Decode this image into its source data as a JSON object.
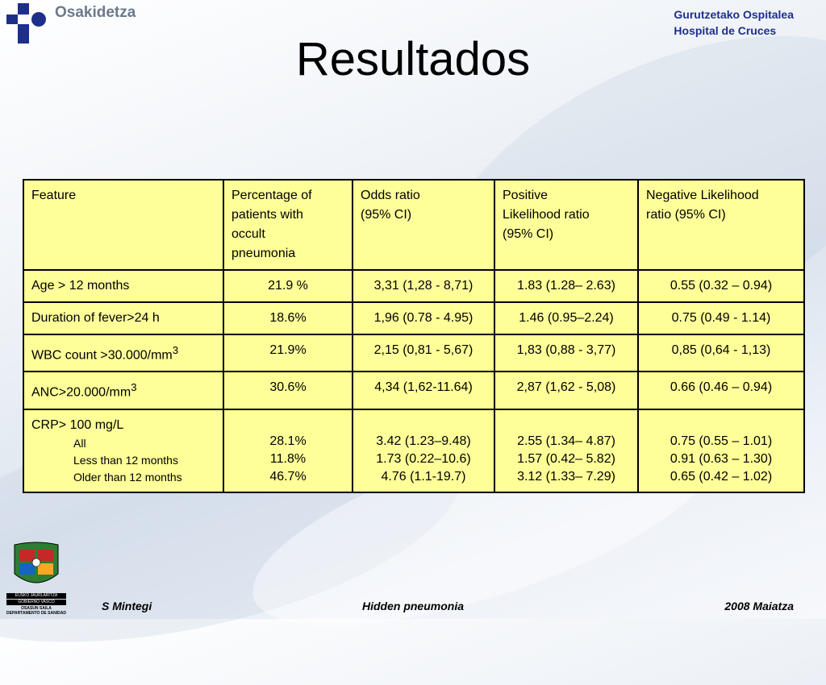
{
  "header": {
    "logo_name": "Osakidetza",
    "hospital_line1": "Gurutzetako Ospitalea",
    "hospital_line2": "Hospital de Cruces"
  },
  "slide": {
    "title": "Resultados"
  },
  "table": {
    "headers": [
      [
        "Feature"
      ],
      [
        "Percentage of",
        "patients with",
        "occult",
        "pneumonia"
      ],
      [
        "Odds ratio",
        "(95% CI)"
      ],
      [
        "Positive",
        "Likelihood ratio",
        "(95% CI)"
      ],
      [
        "Negative Likelihood",
        "ratio (95% CI)"
      ]
    ],
    "rows": [
      {
        "feature": "Age > 12 months",
        "pct": "21.9 %",
        "or": "3,31 (1,28 - 8,71)",
        "plr": "1.83 (1.28– 2.63)",
        "nlr": "0.55 (0.32 – 0.94)"
      },
      {
        "feature": "Duration of fever>24 h",
        "pct": "18.6%",
        "or": "1,96 (0.78 - 4.95)",
        "plr": "1.46 (0.95–2.24)",
        "nlr": "0.75 (0.49 - 1.14)"
      },
      {
        "feature": "WBC count >30.000/mm",
        "sup": "3",
        "pct": "21.9%",
        "or": "2,15 (0,81 - 5,67)",
        "plr": "1,83 (0,88 - 3,77)",
        "nlr": "0,85 (0,64 - 1,13)"
      },
      {
        "feature": "ANC>20.000/mm",
        "sup": "3",
        "pct": "30.6%",
        "or": "4,34 (1,62-11.64)",
        "plr": "2,87 (1,62 - 5,08)",
        "nlr": "0.66 (0.46 – 0.94)"
      }
    ],
    "crp": {
      "feature": "CRP> 100 mg/L",
      "subgroups": [
        "All",
        "Less than 12 months",
        "Older than 12 months"
      ],
      "pct": [
        "28.1%",
        "11.8%",
        "46.7%"
      ],
      "or": [
        "3.42 (1.23–9.48)",
        "1.73 (0.22–10.6)",
        "4.76 (1.1-19.7)"
      ],
      "plr": [
        "2.55 (1.34– 4.87)",
        "1.57 (0.42– 5.82)",
        "3.12 (1.33– 7.29)"
      ],
      "nlr": [
        "0.75 (0.55 – 1.01)",
        "0.91 (0.63 – 1.30)",
        "0.65 (0.42 – 1.02)"
      ]
    }
  },
  "crest": {
    "line1": "EUSKO JAURLARITZA",
    "line2": "GOBIERNO VASCO",
    "line3": "OSASUN SAILA",
    "line4": "DEPARTAMENTO DE SANIDAD"
  },
  "footer": {
    "author": "S Mintegi",
    "topic": "Hidden pneumonia",
    "date": "2008 Maiatza"
  },
  "colors": {
    "table_bg": "#ffff99",
    "logo_blue": "#1e2f8a",
    "hospital_blue": "#1e2f8a"
  }
}
